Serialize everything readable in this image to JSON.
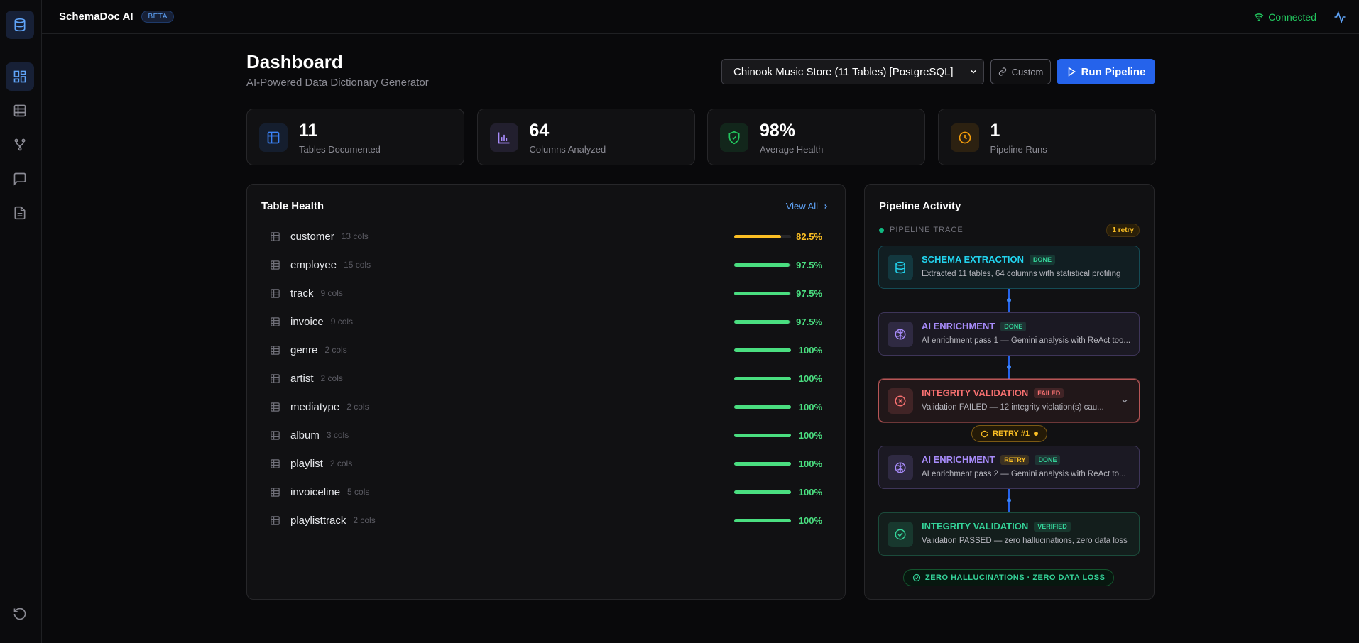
{
  "app": {
    "name": "SchemaDoc AI",
    "badge": "BETA",
    "status": "Connected"
  },
  "header": {
    "title": "Dashboard",
    "subtitle": "AI-Powered Data Dictionary Generator",
    "dataset": "Chinook Music Store (11 Tables) [PostgreSQL]",
    "custom_button": "Custom",
    "run_button": "Run Pipeline"
  },
  "stats": [
    {
      "value": "11",
      "label": "Tables Documented",
      "color": "#3b82f6"
    },
    {
      "value": "64",
      "label": "Columns Analyzed",
      "color": "#a78bfa"
    },
    {
      "value": "98%",
      "label": "Average Health",
      "color": "#22c55e"
    },
    {
      "value": "1",
      "label": "Pipeline Runs",
      "color": "#f59e0b"
    }
  ],
  "table_health": {
    "title": "Table Health",
    "link": "View All",
    "rows": [
      {
        "name": "customer",
        "cols": "13 cols",
        "health": {
          "value": 82.5,
          "label": "82.5%"
        },
        "color": "#fbbf24"
      },
      {
        "name": "employee",
        "cols": "15 cols",
        "health": {
          "value": 97.5,
          "label": "97.5%"
        },
        "color": "#4ade80"
      },
      {
        "name": "track",
        "cols": "9 cols",
        "health": {
          "value": 97.5,
          "label": "97.5%"
        },
        "color": "#4ade80"
      },
      {
        "name": "invoice",
        "cols": "9 cols",
        "health": {
          "value": 97.5,
          "label": "97.5%"
        },
        "color": "#4ade80"
      },
      {
        "name": "genre",
        "cols": "2 cols",
        "health": {
          "value": 100,
          "label": "100%"
        },
        "color": "#4ade80"
      },
      {
        "name": "artist",
        "cols": "2 cols",
        "health": {
          "value": 100,
          "label": "100%"
        },
        "color": "#4ade80"
      },
      {
        "name": "mediatype",
        "cols": "2 cols",
        "health": {
          "value": 100,
          "label": "100%"
        },
        "color": "#4ade80"
      },
      {
        "name": "album",
        "cols": "3 cols",
        "health": {
          "value": 100,
          "label": "100%"
        },
        "color": "#4ade80"
      },
      {
        "name": "playlist",
        "cols": "2 cols",
        "health": {
          "value": 100,
          "label": "100%"
        },
        "color": "#4ade80"
      },
      {
        "name": "invoiceline",
        "cols": "5 cols",
        "health": {
          "value": 100,
          "label": "100%"
        },
        "color": "#4ade80"
      },
      {
        "name": "playlisttrack",
        "cols": "2 cols",
        "health": {
          "value": 100,
          "label": "100%"
        },
        "color": "#4ade80"
      }
    ]
  },
  "pipeline": {
    "title": "Pipeline Activity",
    "trace_label": "PIPELINE TRACE",
    "retry_count": "1 retry",
    "steps": [
      {
        "title": "SCHEMA EXTRACTION",
        "tags": [
          {
            "text": "DONE",
            "color": "#34d399"
          }
        ],
        "description": "Extracted 11 tables, 64 columns with statistical profiling",
        "color": "#22d3ee"
      },
      {
        "title": "AI ENRICHMENT",
        "tags": [
          {
            "text": "DONE",
            "color": "#34d399"
          }
        ],
        "description": "AI enrichment pass 1 — Gemini analysis with ReAct too...",
        "color": "#a78bfa"
      },
      {
        "title": "INTEGRITY VALIDATION",
        "tags": [
          {
            "text": "FAILED",
            "color": "#f87171"
          }
        ],
        "description": "Validation FAILED — 12 integrity violation(s) cau...",
        "color": "#f87171",
        "retry": "RETRY #1"
      },
      {
        "title": "AI ENRICHMENT",
        "tags": [
          {
            "text": "RETRY",
            "color": "#fbbf24"
          },
          {
            "text": "DONE",
            "color": "#34d399"
          }
        ],
        "description": "AI enrichment pass 2 — Gemini analysis with ReAct to...",
        "color": "#a78bfa"
      },
      {
        "title": "INTEGRITY VALIDATION",
        "tags": [
          {
            "text": "VERIFIED",
            "color": "#34d399"
          }
        ],
        "description": "Validation PASSED — zero hallucinations, zero data loss",
        "color": "#34d399"
      }
    ],
    "footer": "ZERO HALLUCINATIONS · ZERO DATA LOSS"
  }
}
